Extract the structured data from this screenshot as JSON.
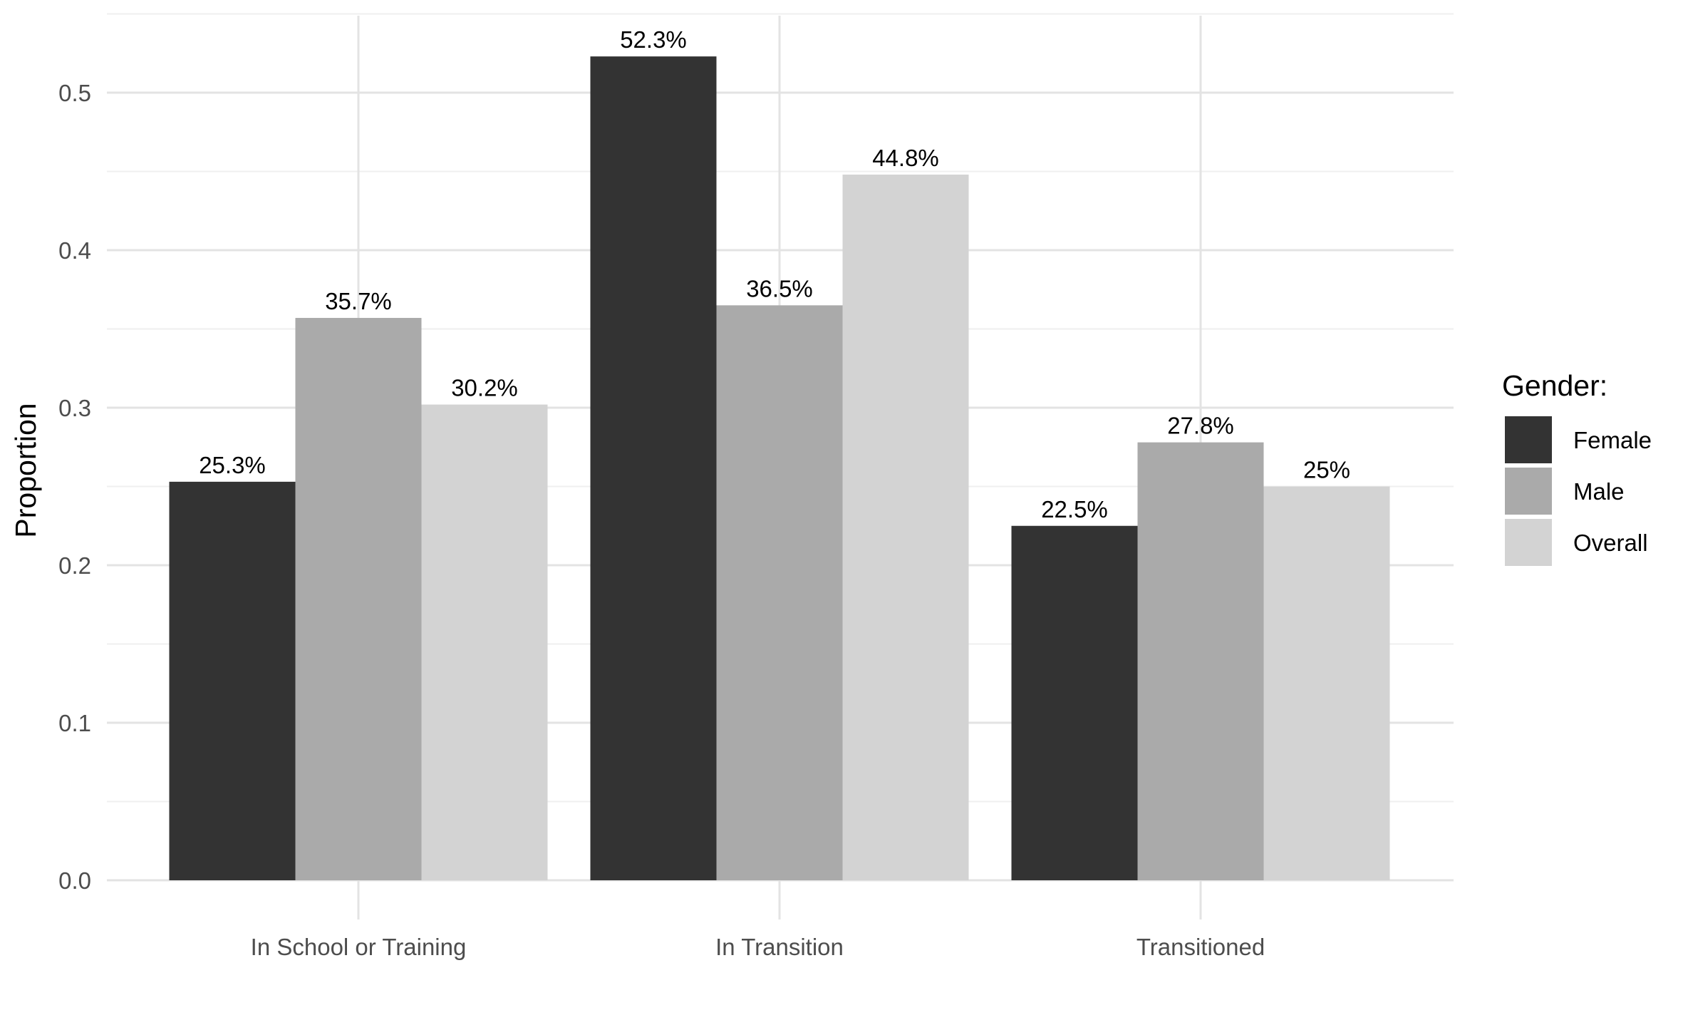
{
  "chart_data": {
    "type": "bar",
    "title": "",
    "xlabel": "",
    "ylabel": "Proportion",
    "ylim": [
      0,
      0.54
    ],
    "yticks": [
      "0.0",
      "0.1",
      "0.2",
      "0.3",
      "0.4",
      "0.5"
    ],
    "categories": [
      "In School or Training",
      "In Transition",
      "Transitioned"
    ],
    "series": [
      {
        "name": "Female",
        "values": [
          0.253,
          0.523,
          0.225
        ],
        "labels": [
          "25.3%",
          "52.3%",
          "22.5%"
        ],
        "color": "#333333"
      },
      {
        "name": "Male",
        "values": [
          0.357,
          0.365,
          0.278
        ],
        "labels": [
          "35.7%",
          "36.5%",
          "27.8%"
        ],
        "color": "#aaaaaa"
      },
      {
        "name": "Overall",
        "values": [
          0.302,
          0.448,
          0.25
        ],
        "labels": [
          "30.2%",
          "44.8%",
          "25%"
        ],
        "color": "#d3d3d3"
      }
    ],
    "legend": {
      "title": "Gender:",
      "position": "right"
    },
    "grid": true
  }
}
